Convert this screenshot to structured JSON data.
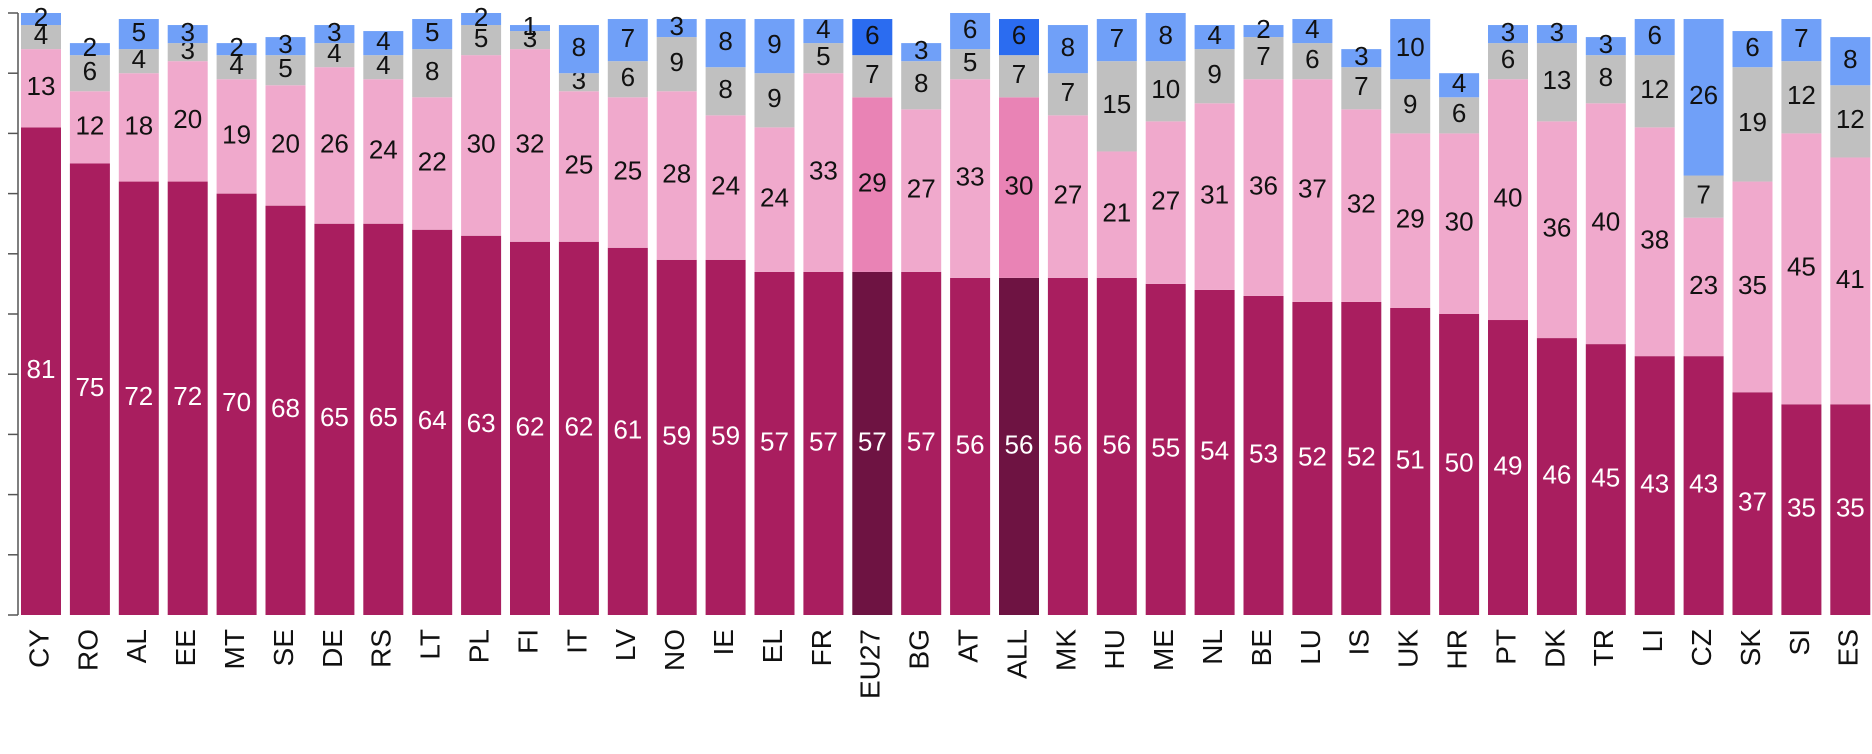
{
  "chart_data": {
    "type": "stacked_bar",
    "categories": [
      "CY",
      "RO",
      "AL",
      "EE",
      "MT",
      "SE",
      "DE",
      "RS",
      "LT",
      "PL",
      "FI",
      "IT",
      "LV",
      "NO",
      "IE",
      "EL",
      "FR",
      "EU27",
      "BG",
      "AT",
      "ALL",
      "MK",
      "HU",
      "ME",
      "NL",
      "BE",
      "LU",
      "IS",
      "UK",
      "HR",
      "PT",
      "DK",
      "TR",
      "LI",
      "CZ",
      "SK",
      "SI",
      "ES"
    ],
    "series": [
      {
        "color": "#a91e5f",
        "highlight_color": "#6e1342",
        "values": [
          81,
          75,
          72,
          72,
          70,
          68,
          65,
          65,
          64,
          63,
          62,
          62,
          61,
          59,
          59,
          57,
          57,
          57,
          57,
          56,
          56,
          56,
          56,
          55,
          54,
          53,
          52,
          52,
          51,
          50,
          49,
          46,
          45,
          43,
          43,
          37,
          35,
          35
        ]
      },
      {
        "color": "#f0a9cc",
        "highlight_color": "#e983b5",
        "values": [
          13,
          12,
          18,
          20,
          19,
          20,
          26,
          24,
          22,
          30,
          32,
          25,
          25,
          28,
          24,
          24,
          33,
          29,
          27,
          33,
          30,
          27,
          21,
          27,
          31,
          36,
          37,
          32,
          29,
          30,
          40,
          36,
          40,
          38,
          23,
          35,
          45,
          41
        ]
      },
      {
        "color": "#c0c0c0",
        "highlight_color": "#c0c0c0",
        "values": [
          4,
          6,
          4,
          3,
          4,
          5,
          4,
          4,
          8,
          5,
          3,
          3,
          6,
          9,
          8,
          9,
          5,
          7,
          8,
          5,
          7,
          7,
          15,
          10,
          9,
          7,
          6,
          7,
          9,
          6,
          6,
          13,
          8,
          12,
          7,
          19,
          12,
          12
        ]
      },
      {
        "color": "#70a0f8",
        "highlight_color": "#2b6cf0",
        "values": [
          2,
          2,
          5,
          3,
          2,
          3,
          3,
          4,
          5,
          2,
          1,
          8,
          7,
          3,
          8,
          9,
          4,
          6,
          3,
          6,
          6,
          8,
          7,
          8,
          4,
          2,
          4,
          3,
          10,
          4,
          3,
          3,
          3,
          6,
          26,
          6,
          7,
          8
        ]
      }
    ],
    "highlight": [
      17,
      20
    ],
    "ylim": [
      0,
      100
    ],
    "yticks": [
      0,
      10,
      20,
      30,
      40,
      50,
      60,
      70,
      80,
      90,
      100
    ]
  }
}
